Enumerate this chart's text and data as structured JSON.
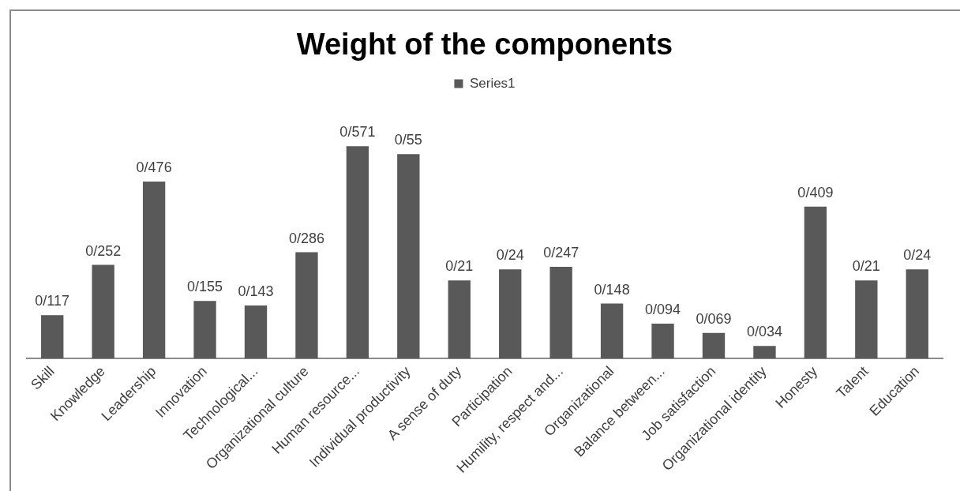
{
  "chart_data": {
    "type": "bar",
    "title": "Weight of the components",
    "categories": [
      "Skill",
      "Knowledge",
      "Leadership",
      "Innovation",
      "Technological...",
      "Organizational culture",
      "Human resource...",
      "Individual productivity",
      "A sense of duty",
      "Participation",
      "Humility, respect and...",
      "Organizational",
      "Balance between...",
      "Job satisfaction",
      "Organizational identity",
      "Honesty",
      "Talent",
      "Education"
    ],
    "series": [
      {
        "name": "Series1",
        "color": "#595959",
        "values": [
          0.117,
          0.252,
          0.476,
          0.155,
          0.143,
          0.286,
          0.571,
          0.55,
          0.21,
          0.24,
          0.247,
          0.148,
          0.094,
          0.069,
          0.034,
          0.409,
          0.21,
          0.24
        ],
        "value_labels": [
          "0/117",
          "0/252",
          "0/476",
          "0/155",
          "0/143",
          "0/286",
          "0/571",
          "0/55",
          "0/21",
          "0/24",
          "0/247",
          "0/148",
          "0/094",
          "0/069",
          "0/034",
          "0/409",
          "0/21",
          "0/24"
        ]
      }
    ],
    "legend": "top",
    "grid": false
  }
}
